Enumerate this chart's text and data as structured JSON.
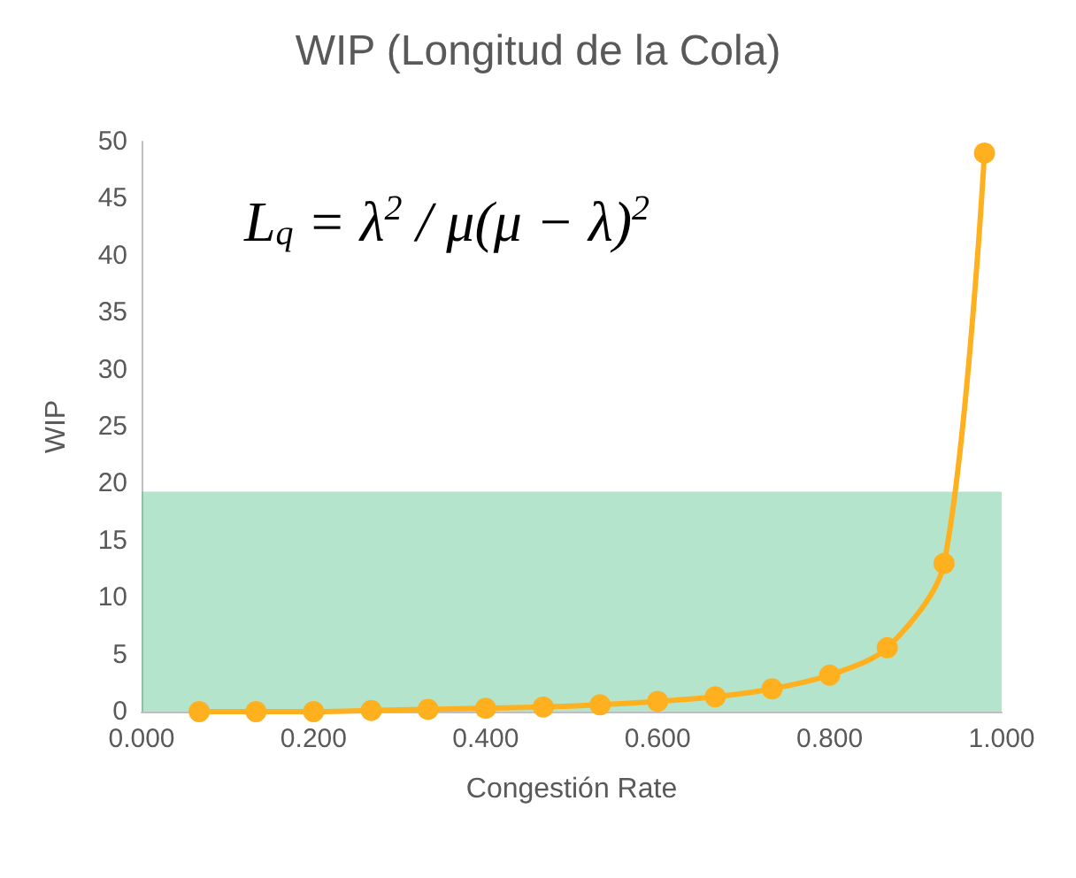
{
  "chart_data": {
    "type": "line",
    "title": "WIP (Longitud de la Cola)",
    "xlabel": "Congestión Rate",
    "ylabel": "WIP",
    "x": [
      0.067,
      0.133,
      0.2,
      0.267,
      0.333,
      0.4,
      0.467,
      0.533,
      0.6,
      0.667,
      0.733,
      0.8,
      0.867,
      0.933,
      0.98
    ],
    "series": [
      {
        "color": "#ffb01f",
        "values": [
          0.0,
          0.0,
          0.0,
          0.1,
          0.2,
          0.3,
          0.4,
          0.6,
          0.9,
          1.3,
          2.0,
          3.2,
          5.6,
          13.0,
          49.0
        ]
      }
    ],
    "xlim": [
      0,
      1
    ],
    "xticks": [
      {
        "value": 0,
        "label": "0.000"
      },
      {
        "value": 0.2,
        "label": "0.200"
      },
      {
        "value": 0.4,
        "label": "0.400"
      },
      {
        "value": 0.6,
        "label": "0.600"
      },
      {
        "value": 0.8,
        "label": "0.800"
      },
      {
        "value": 1,
        "label": "1.000"
      }
    ],
    "ylim": [
      0,
      50
    ],
    "yticks": [
      0,
      5,
      10,
      15,
      20,
      25,
      30,
      35,
      40,
      45,
      50
    ],
    "bands": [
      {
        "axis": "y",
        "from": 0,
        "to": 19.3,
        "color": "#4fbf87"
      }
    ],
    "annotations": [
      "L$_{q}$ = λ$^{2}$ / μ(μ − λ)$^{2}$"
    ],
    "marker": "circle",
    "line_style": "solid",
    "grid": false
  }
}
